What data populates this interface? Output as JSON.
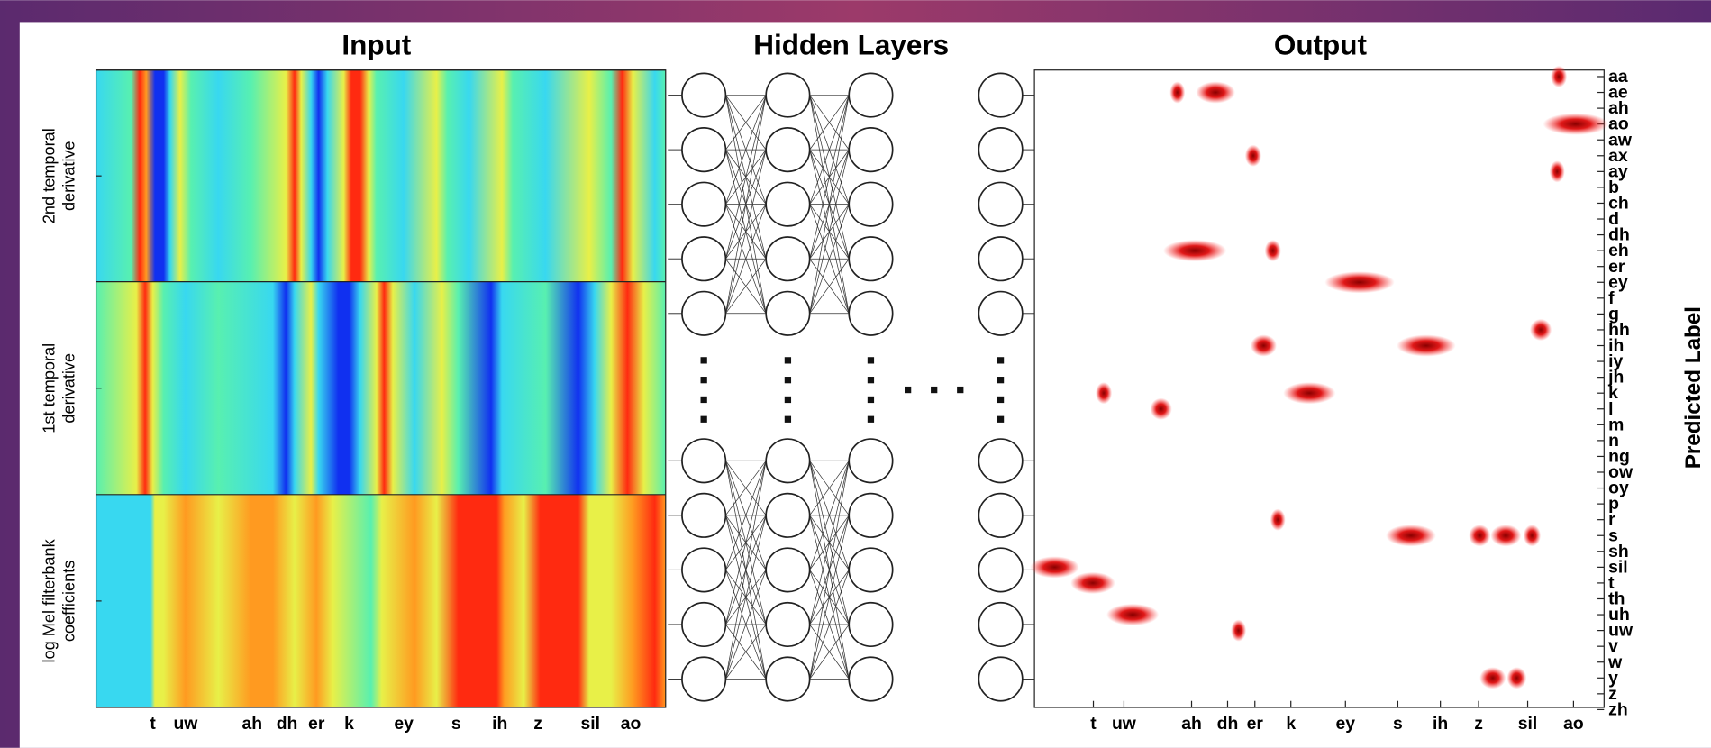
{
  "titles": {
    "input": "Input",
    "hidden": "Hidden Layers",
    "output": "Output"
  },
  "input_panel": {
    "row_labels": [
      [
        "2nd temporal",
        "derivative"
      ],
      [
        "1st temporal",
        "derivative"
      ],
      [
        "log Mel filterbank",
        "coefficients"
      ]
    ],
    "x_labels": [
      "t",
      "uw",
      "ah",
      "dh",
      "er",
      "k",
      "ey",
      "s",
      "ih",
      "z",
      "sil",
      "ao"
    ]
  },
  "output_panel": {
    "x_labels": [
      "t",
      "uw",
      "ah",
      "dh",
      "er",
      "k",
      "ey",
      "s",
      "ih",
      "z",
      "sil",
      "ao"
    ],
    "y_labels": [
      "aa",
      "ae",
      "ah",
      "ao",
      "aw",
      "ax",
      "ay",
      "b",
      "ch",
      "d",
      "dh",
      "eh",
      "er",
      "ey",
      "f",
      "g",
      "hh",
      "ih",
      "iy",
      "jh",
      "k",
      "l",
      "m",
      "n",
      "ng",
      "ow",
      "oy",
      "p",
      "r",
      "s",
      "sh",
      "sil",
      "t",
      "th",
      "uh",
      "uw",
      "v",
      "w",
      "y",
      "z",
      "zh"
    ],
    "y_axis_title": "Predicted Label"
  }
}
